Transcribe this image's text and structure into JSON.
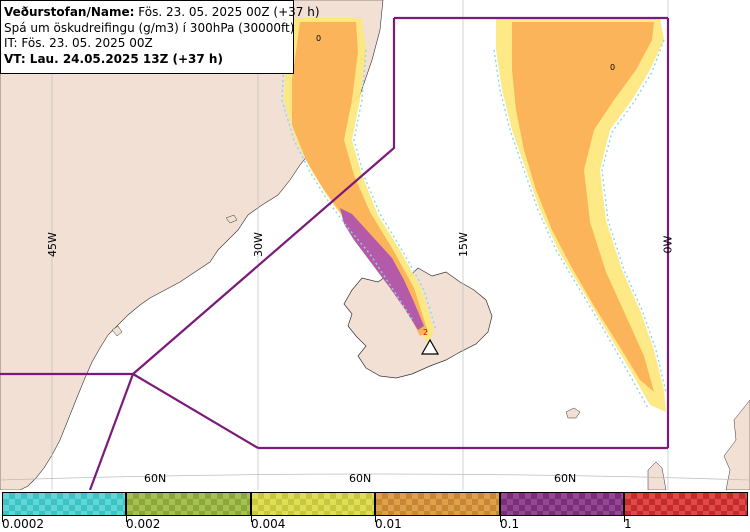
{
  "header": {
    "line1_bold": "Veðurstofan/Name:",
    "line1_rest": " Fös. 23. 05. 2025 00Z (+37 h)",
    "line2": "Spá um öskudreifingu (g/m3) í 300hPa (30000ft)",
    "line3": "IT: Fös. 23. 05. 2025 00Z",
    "line4": "VT: Lau. 24.05.2025 13Z (+37 h)"
  },
  "grid": {
    "lon_labels": [
      "45W",
      "30W",
      "15W",
      "0W"
    ],
    "lat_labels": [
      "60N",
      "60N",
      "60N"
    ]
  },
  "contour_labels": [
    "0",
    "0",
    "2"
  ],
  "legend": {
    "ticks": [
      "0.0002",
      "0.002",
      "0.004",
      "0.01",
      "0.1",
      "1"
    ],
    "colors": [
      "#3cc4c4",
      "#8ca83a",
      "#c8c83a",
      "#c8862e",
      "#7a2e7a",
      "#c82a2a"
    ]
  },
  "colors": {
    "land": "#f2e0d4",
    "boundary": "#7a1a7a",
    "ash_low": "#fde87a",
    "ash_mid": "#fbb45a",
    "ash_high": "#b45aa8",
    "ash_edge": "#8ad8e0"
  }
}
